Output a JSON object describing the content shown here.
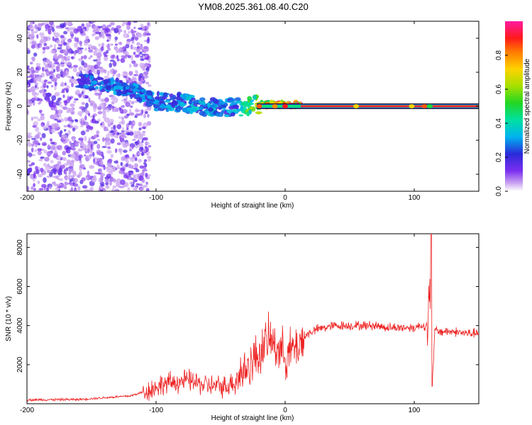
{
  "chart_data": [
    {
      "type": "heatmap",
      "title": "YM08.2025.361.08.40.C20",
      "xlabel": "Height of straight line (km)",
      "ylabel": "Frequency (Hz)",
      "xlim": [
        -200,
        150
      ],
      "ylim": [
        -50,
        50
      ],
      "xticks": [
        -200,
        -100,
        0,
        100
      ],
      "xtick_labels": [
        "-200",
        "-100",
        "0",
        "100"
      ],
      "yticks": [
        40,
        20,
        0,
        -20,
        -40
      ],
      "ytick_labels": [
        "40",
        "20",
        "0",
        "-20",
        "-40"
      ],
      "colorbar": {
        "label": "Normalized spectral amplitude",
        "range": [
          0,
          1
        ],
        "ticks": [
          0.0,
          0.2,
          0.4,
          0.6,
          0.8
        ],
        "tick_labels": [
          "0.0",
          "0.2",
          "0.4",
          "0.6",
          "0.8"
        ]
      },
      "features": {
        "noise_region_x": [
          -200,
          -105
        ],
        "signal_band": [
          {
            "x": -160,
            "freq": 15,
            "amp": 0.25
          },
          {
            "x": -140,
            "freq": 13,
            "amp": 0.3
          },
          {
            "x": -120,
            "freq": 10,
            "amp": 0.3
          },
          {
            "x": -100,
            "freq": 3,
            "amp": 0.3
          },
          {
            "x": -80,
            "freq": 2,
            "amp": 0.3
          },
          {
            "x": -60,
            "freq": 0,
            "amp": 0.35
          },
          {
            "x": -40,
            "freq": -1,
            "amp": 0.3
          },
          {
            "x": -20,
            "freq": 1,
            "amp": 0.7
          },
          {
            "x": 0,
            "freq": 1,
            "amp": 0.9
          },
          {
            "x": 50,
            "freq": 0,
            "amp": 1.0
          },
          {
            "x": 100,
            "freq": 0,
            "amp": 1.0
          },
          {
            "x": 150,
            "freq": 0,
            "amp": 1.0
          }
        ]
      }
    },
    {
      "type": "line",
      "xlabel": "Height of straight line (km)",
      "ylabel": "SNR (10 * v/v)",
      "xlim": [
        -200,
        150
      ],
      "ylim": [
        0,
        8700
      ],
      "xticks": [
        -200,
        -100,
        0,
        100
      ],
      "xtick_labels": [
        "-200",
        "-100",
        "0",
        "100"
      ],
      "yticks": [
        2000,
        4000,
        6000,
        8000
      ],
      "ytick_labels": [
        "2000",
        "4000",
        "6000",
        "8000"
      ],
      "series": [
        {
          "name": "SNR",
          "color": "#ee2222",
          "x": [
            -200,
            -160,
            -120,
            -105,
            -95,
            -85,
            -75,
            -65,
            -55,
            -45,
            -38,
            -30,
            -25,
            -20,
            -16,
            -12,
            -8,
            -4,
            0,
            5,
            10,
            15,
            20,
            30,
            40,
            50,
            60,
            70,
            80,
            90,
            100,
            105,
            110,
            112,
            114,
            116,
            118,
            120,
            130,
            140,
            150
          ],
          "values": [
            200,
            220,
            400,
            700,
            1000,
            1100,
            1200,
            1000,
            900,
            900,
            1300,
            1800,
            2200,
            2600,
            3000,
            3300,
            3000,
            2800,
            2500,
            2700,
            3000,
            3400,
            3700,
            3900,
            4000,
            4000,
            4000,
            4000,
            3900,
            3900,
            3900,
            4000,
            4000,
            5000,
            1000,
            3800,
            3700,
            3700,
            3700,
            3600,
            3600
          ]
        }
      ]
    }
  ]
}
